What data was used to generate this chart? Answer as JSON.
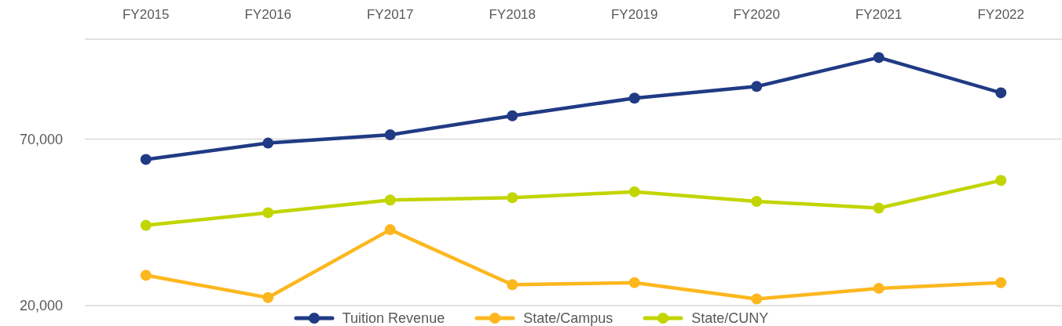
{
  "chart_data": {
    "type": "line",
    "categories": [
      "FY2015",
      "FY2016",
      "FY2017",
      "FY2018",
      "FY2019",
      "FY2020",
      "FY2021",
      "FY2022"
    ],
    "series": [
      {
        "name": "Tuition Revenue",
        "color": "#203a84",
        "values": [
          63900,
          68800,
          71300,
          77000,
          82300,
          85800,
          94500,
          83900
        ]
      },
      {
        "name": "State/Campus",
        "color": "#fdb71e",
        "values": [
          29100,
          22400,
          42800,
          26300,
          26900,
          22000,
          25200,
          26900
        ]
      },
      {
        "name": "State/CUNY",
        "color": "#c2d500",
        "values": [
          44100,
          47900,
          51700,
          52400,
          54200,
          51300,
          49300,
          57600
        ]
      }
    ],
    "ylim": [
      20000,
      100000
    ],
    "yticks": [
      {
        "value": 20000,
        "label": "20,000"
      },
      {
        "value": 70000,
        "label": "70,000"
      }
    ],
    "grid": "y",
    "legend": "bottom",
    "marker": "circle",
    "line_style": "solid"
  }
}
